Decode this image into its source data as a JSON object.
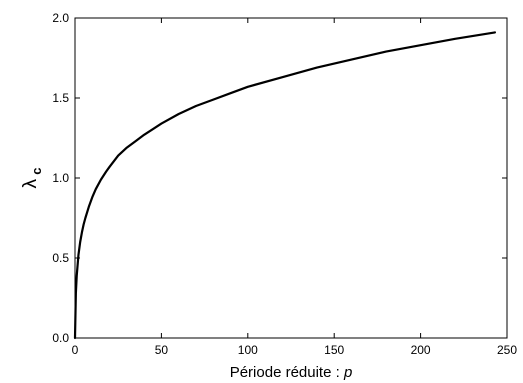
{
  "chart_data": {
    "type": "line",
    "title": "",
    "xlabel": {
      "text": "Période réduite : ",
      "var": "p"
    },
    "ylabel": {
      "symbol": "λ",
      "subscript": "c"
    },
    "xlim": [
      0,
      250
    ],
    "ylim": [
      0.0,
      2.0
    ],
    "x_ticks": [
      0,
      50,
      100,
      150,
      200,
      250
    ],
    "x_tick_labels": [
      "0",
      "50",
      "100",
      "150",
      "200",
      "250"
    ],
    "y_ticks": [
      0.0,
      0.5,
      1.0,
      1.5,
      2.0
    ],
    "y_tick_labels": [
      "0.0",
      "0.5",
      "1.0",
      "1.5",
      "2.0"
    ],
    "grid": false,
    "legend": "none",
    "series": [
      {
        "color": "#000000",
        "x": [
          0,
          0.5,
          1,
          2,
          3,
          4,
          5,
          6,
          8,
          10,
          12,
          15,
          18,
          20,
          25,
          30,
          35,
          40,
          50,
          60,
          70,
          80,
          90,
          100,
          120,
          140,
          160,
          180,
          200,
          220,
          243
        ],
        "y": [
          0.0,
          0.28,
          0.39,
          0.52,
          0.6,
          0.66,
          0.71,
          0.75,
          0.82,
          0.88,
          0.93,
          0.99,
          1.04,
          1.07,
          1.14,
          1.19,
          1.23,
          1.27,
          1.34,
          1.4,
          1.45,
          1.49,
          1.53,
          1.57,
          1.63,
          1.69,
          1.74,
          1.79,
          1.83,
          1.87,
          1.91
        ]
      }
    ]
  }
}
